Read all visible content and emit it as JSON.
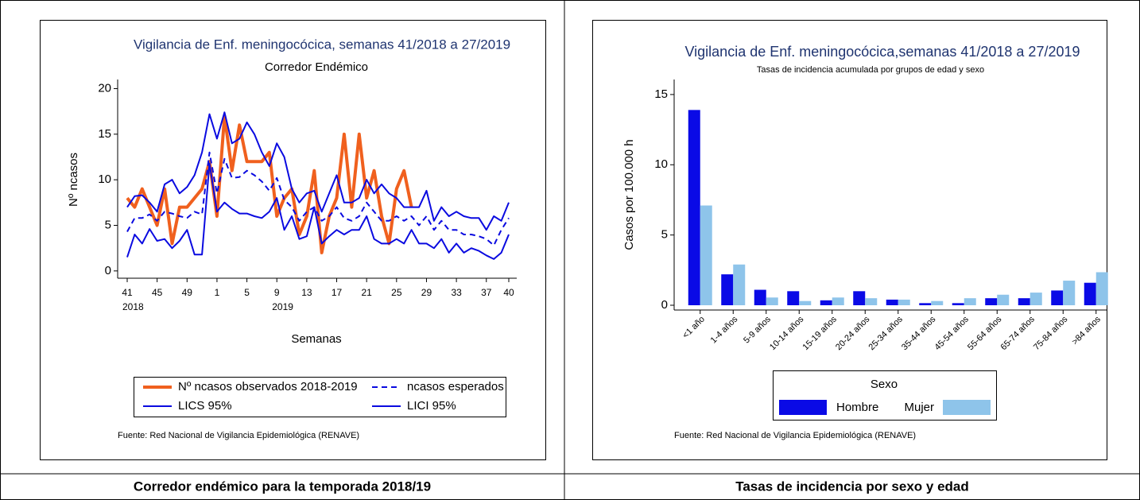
{
  "captions": [
    "Corredor endémico para la temporada 2018/19",
    "Tasas de incidencia por sexo y edad"
  ],
  "chart_data": [
    {
      "type": "line",
      "title": "Vigilancia de Enf. meningocócica, semanas 41/2018 a 27/2019",
      "subtitle": "Corredor Endémico",
      "y_label": "Nº ncasos",
      "x_label": "Semanas",
      "source": "Fuente: Red Nacional de Vigilancia Epidemiológica (RENAVE)",
      "categories": [
        "41",
        null,
        null,
        null,
        "45",
        null,
        null,
        null,
        "49",
        null,
        null,
        null,
        "1",
        null,
        null,
        null,
        "5",
        null,
        null,
        null,
        "9",
        null,
        null,
        null,
        "13",
        null,
        null,
        null,
        "17",
        null,
        null,
        null,
        "21",
        null,
        null,
        null,
        "25",
        null,
        null,
        null,
        "29",
        null,
        null,
        null,
        "33",
        null,
        null,
        null,
        "37",
        null,
        null,
        "40"
      ],
      "x_sublabels": [
        "2018",
        null,
        null,
        null,
        null,
        null,
        null,
        null,
        null,
        null,
        null,
        null,
        null,
        null,
        null,
        null,
        null,
        null,
        null,
        null,
        "2019",
        null,
        null,
        null,
        null,
        null,
        null,
        null,
        null,
        null,
        null,
        null,
        null,
        null,
        null,
        null,
        null,
        null,
        null,
        null,
        null,
        null,
        null,
        null,
        null,
        null,
        null,
        null,
        null,
        null,
        null,
        null
      ],
      "ylim": [
        -0.8,
        21
      ],
      "yticks": [
        0,
        5,
        10,
        15,
        20
      ],
      "series": [
        {
          "name": "Nº ncasos observados 2018-2019",
          "color": "#f0601e",
          "width": 4,
          "dashed": false,
          "values": [
            8,
            7,
            9,
            7,
            5,
            9,
            3,
            7,
            7,
            8,
            9,
            12,
            6,
            17,
            11,
            16,
            12,
            12,
            12,
            13,
            6,
            8,
            9,
            4,
            6,
            11,
            2,
            6,
            8,
            15,
            7,
            15,
            8,
            11,
            6,
            3,
            9,
            11,
            7,
            null,
            null,
            null,
            null,
            null,
            null,
            null,
            null,
            null,
            null,
            null,
            null,
            null
          ]
        },
        {
          "name": "ncasos esperados",
          "color": "#0a0ae0",
          "width": 2,
          "dashed": true,
          "values": [
            4.3,
            5.8,
            5.8,
            6.2,
            5.5,
            6.5,
            6.3,
            6,
            5.8,
            6.5,
            6.2,
            13,
            8.5,
            12.3,
            10.2,
            10.3,
            11,
            10.5,
            9.8,
            8.8,
            10.2,
            7.8,
            7,
            5.5,
            6.5,
            7,
            5.5,
            6,
            7,
            5.8,
            5.5,
            6,
            7.5,
            6.5,
            5.5,
            5.5,
            6,
            5.5,
            6,
            5,
            6,
            4.5,
            5.5,
            4.5,
            4.5,
            4,
            4,
            3.8,
            3.5,
            2.8,
            4.5,
            5.8
          ]
        },
        {
          "name": "LICS 95%",
          "color": "#0a0ae0",
          "width": 2,
          "dashed": false,
          "values": [
            7,
            8.2,
            8.3,
            7.5,
            6.5,
            9.5,
            10,
            8.5,
            9.2,
            10.5,
            13,
            17.2,
            14.5,
            17.4,
            14,
            14.5,
            16.3,
            15,
            13,
            11.5,
            14,
            12.5,
            9,
            7.5,
            8.5,
            8.8,
            6.5,
            8.5,
            10.5,
            7.5,
            7.5,
            8,
            10,
            8.5,
            9.5,
            8.5,
            8,
            7,
            7,
            7,
            8.8,
            5.5,
            7,
            6,
            6.5,
            6,
            5.8,
            5.8,
            4.5,
            6,
            5.5,
            7.5
          ]
        },
        {
          "name": "LICI 95%",
          "color": "#0a0ae0",
          "width": 2,
          "dashed": false,
          "values": [
            1.5,
            4,
            3,
            4.6,
            3.3,
            3.5,
            2.5,
            3.3,
            4.5,
            1.8,
            1.8,
            11.8,
            6.5,
            7.5,
            6.8,
            6.3,
            6.3,
            6,
            5.8,
            6.5,
            8,
            4.5,
            6,
            3.5,
            3.8,
            7,
            3,
            3.8,
            4.5,
            4,
            4.5,
            4.5,
            6,
            3.5,
            3,
            3,
            3.5,
            3,
            4.5,
            3,
            3,
            2.5,
            3.5,
            2,
            3,
            2,
            2.5,
            2.2,
            1.7,
            1.3,
            2,
            4
          ]
        }
      ]
    },
    {
      "type": "bar",
      "title": "Vigilancia de Enf. meningocócica,semanas 41/2018 a 27/2019",
      "subtitle": "Tasas de incidencia acumulada por grupos de edad y sexo",
      "y_label": "Casos por 100.000 h",
      "legend_title": "Sexo",
      "source": "Fuente: Red Nacional de Vigilancia Epidemiológica (RENAVE)",
      "categories": [
        "<1 año",
        "1-4 años",
        "5-9 años",
        "10-14 años",
        "15-19 años",
        "20-24 años",
        "25-34 años",
        "35-44 años",
        "45-54 años",
        "55-64 años",
        "65-74 años",
        "75-84 años",
        ">84 años"
      ],
      "ylim": [
        -0.34,
        16.07
      ],
      "yticks": [
        0,
        5,
        10,
        15
      ],
      "series": [
        {
          "name": "Hombre",
          "color": "#0a0ae6",
          "values": [
            13.9,
            2.2,
            1.1,
            1.0,
            0.35,
            1.0,
            0.4,
            0.15,
            0.15,
            0.5,
            0.5,
            1.05,
            1.6
          ]
        },
        {
          "name": "Mujer",
          "color": "#8ec4ea",
          "values": [
            7.1,
            2.9,
            0.55,
            0.3,
            0.55,
            0.5,
            0.4,
            0.3,
            0.5,
            0.75,
            0.9,
            1.75,
            2.35
          ]
        }
      ]
    }
  ]
}
